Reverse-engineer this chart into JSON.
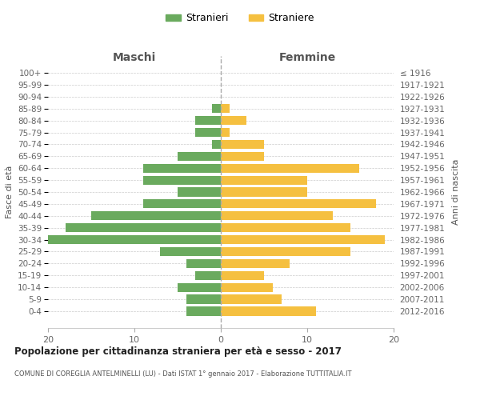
{
  "age_groups": [
    "100+",
    "95-99",
    "90-94",
    "85-89",
    "80-84",
    "75-79",
    "70-74",
    "65-69",
    "60-64",
    "55-59",
    "50-54",
    "45-49",
    "40-44",
    "35-39",
    "30-34",
    "25-29",
    "20-24",
    "15-19",
    "10-14",
    "5-9",
    "0-4"
  ],
  "birth_years": [
    "≤ 1916",
    "1917-1921",
    "1922-1926",
    "1927-1931",
    "1932-1936",
    "1937-1941",
    "1942-1946",
    "1947-1951",
    "1952-1956",
    "1957-1961",
    "1962-1966",
    "1967-1971",
    "1972-1976",
    "1977-1981",
    "1982-1986",
    "1987-1991",
    "1992-1996",
    "1997-2001",
    "2002-2006",
    "2007-2011",
    "2012-2016"
  ],
  "males": [
    0,
    0,
    0,
    1,
    3,
    3,
    1,
    5,
    9,
    9,
    5,
    9,
    15,
    18,
    20,
    7,
    4,
    3,
    5,
    4,
    4
  ],
  "females": [
    0,
    0,
    0,
    1,
    3,
    1,
    5,
    5,
    16,
    10,
    10,
    18,
    13,
    15,
    19,
    15,
    8,
    5,
    6,
    7,
    11
  ],
  "male_color": "#6aaa5e",
  "female_color": "#f5c040",
  "title": "Popolazione per cittadinanza straniera per età e sesso - 2017",
  "subtitle": "COMUNE DI COREGLIA ANTELMINELLI (LU) - Dati ISTAT 1° gennaio 2017 - Elaborazione TUTTITALIA.IT",
  "xlabel_left": "Maschi",
  "xlabel_right": "Femmine",
  "ylabel_left": "Fasce di età",
  "ylabel_right": "Anni di nascita",
  "legend_male": "Stranieri",
  "legend_female": "Straniere",
  "xlim": 20,
  "background_color": "#ffffff",
  "grid_color": "#cccccc",
  "bar_height": 0.75
}
